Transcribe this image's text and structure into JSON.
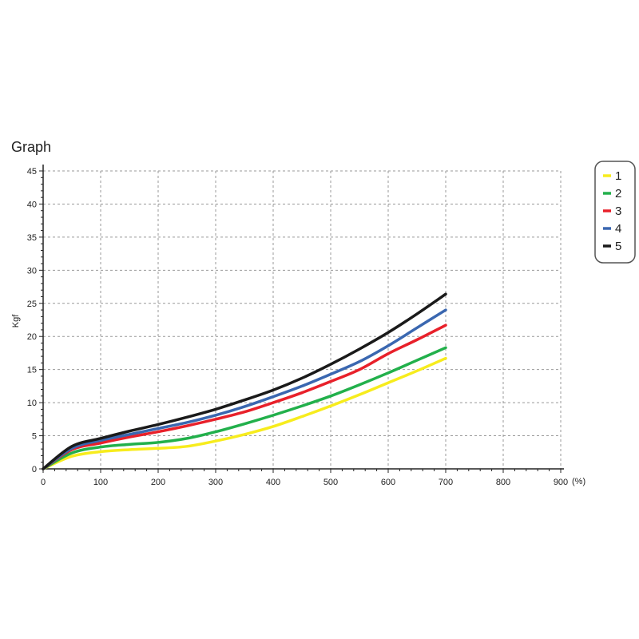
{
  "chart_data": {
    "type": "line",
    "title": "Graph",
    "ylabel": "Kgf",
    "xunit": "(%)",
    "xlim": [
      0,
      900
    ],
    "ylim": [
      0,
      45
    ],
    "xticks": [
      0,
      100,
      200,
      300,
      400,
      500,
      600,
      700,
      800,
      900
    ],
    "yticks": [
      0,
      5,
      10,
      15,
      20,
      25,
      30,
      35,
      40,
      45
    ],
    "grid": true,
    "legend_position": "top-right",
    "series": [
      {
        "name": "1",
        "color": "#f7ec1d",
        "x": [
          0,
          50,
          100,
          150,
          200,
          250,
          300,
          350,
          400,
          450,
          500,
          550,
          600,
          650,
          700
        ],
        "y": [
          0,
          1.9,
          2.6,
          2.9,
          3.1,
          3.4,
          4.2,
          5.2,
          6.4,
          7.9,
          9.5,
          11.2,
          13.0,
          14.8,
          16.7
        ]
      },
      {
        "name": "2",
        "color": "#22b04b",
        "x": [
          0,
          50,
          100,
          150,
          200,
          250,
          300,
          350,
          400,
          450,
          500,
          550,
          600,
          650,
          700
        ],
        "y": [
          0,
          2.4,
          3.3,
          3.7,
          4.0,
          4.6,
          5.6,
          6.8,
          8.1,
          9.5,
          11.0,
          12.7,
          14.5,
          16.4,
          18.3
        ]
      },
      {
        "name": "3",
        "color": "#e8202a",
        "x": [
          0,
          50,
          100,
          150,
          200,
          250,
          300,
          350,
          400,
          450,
          500,
          550,
          600,
          650,
          700
        ],
        "y": [
          0,
          2.9,
          3.9,
          4.8,
          5.6,
          6.5,
          7.5,
          8.6,
          10.0,
          11.5,
          13.2,
          15.0,
          17.4,
          19.5,
          21.7
        ]
      },
      {
        "name": "4",
        "color": "#3a67b0",
        "x": [
          0,
          50,
          100,
          150,
          200,
          250,
          300,
          350,
          400,
          450,
          500,
          550,
          600,
          650,
          700
        ],
        "y": [
          0,
          3.1,
          4.3,
          5.2,
          6.1,
          7.0,
          8.1,
          9.4,
          10.9,
          12.5,
          14.3,
          16.2,
          18.6,
          21.3,
          24.0
        ]
      },
      {
        "name": "5",
        "color": "#1a1a1a",
        "x": [
          0,
          50,
          100,
          150,
          200,
          250,
          300,
          350,
          400,
          450,
          500,
          550,
          600,
          650,
          700
        ],
        "y": [
          0,
          3.4,
          4.6,
          5.7,
          6.7,
          7.8,
          9.0,
          10.4,
          11.9,
          13.7,
          15.8,
          18.1,
          20.6,
          23.4,
          26.4
        ]
      }
    ]
  }
}
